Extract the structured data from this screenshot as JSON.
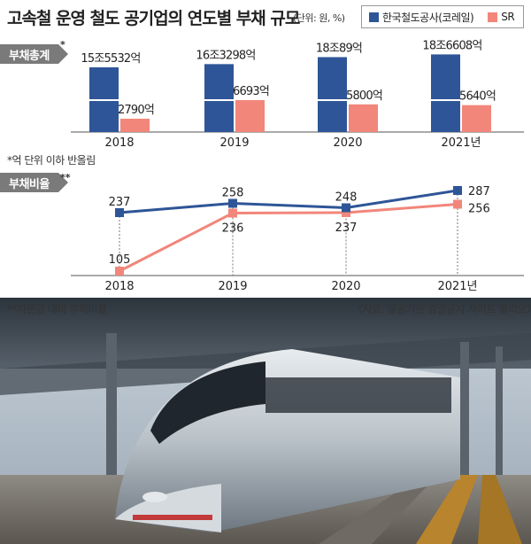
{
  "title": "고속철 운영 철도 공기업의 연도별 부채 규모",
  "unit": "(단위: 원, %)",
  "colors": {
    "korail": "#2e5597",
    "sr": "#f2867a",
    "tag": "#7a7a7a"
  },
  "legend": {
    "korail": "한국철도공사(코레일)",
    "sr": "SR"
  },
  "section1": {
    "tag": "부채총계",
    "mark": "*"
  },
  "section2": {
    "tag": "부채비율",
    "mark": "**"
  },
  "note1": "*억 단위 이하 반올림",
  "note2": "**자본금 대비 부채비율",
  "source": "〈자료: 공공기관 경영공시 사이트 알리오〉",
  "chart_data": [
    {
      "type": "bar",
      "categories": [
        "2018",
        "2019",
        "2020",
        "2021년"
      ],
      "series": [
        {
          "name": "한국철도공사(코레일)",
          "values": [
            155532,
            163298,
            180089,
            186608
          ],
          "labels": [
            "15조5532억",
            "16조3298억",
            "18조89억",
            "18조6608억"
          ]
        },
        {
          "name": "SR",
          "values": [
            2790,
            6693,
            5800,
            5640
          ],
          "labels": [
            "2790억",
            "6693억",
            "5800억",
            "5640억"
          ]
        }
      ]
    },
    {
      "type": "line",
      "categories": [
        "2018",
        "2019",
        "2020",
        "2021년"
      ],
      "series": [
        {
          "name": "한국철도공사(코레일)",
          "values": [
            237,
            258,
            248,
            287
          ]
        },
        {
          "name": "SR",
          "values": [
            105,
            236,
            237,
            256
          ]
        }
      ]
    }
  ]
}
